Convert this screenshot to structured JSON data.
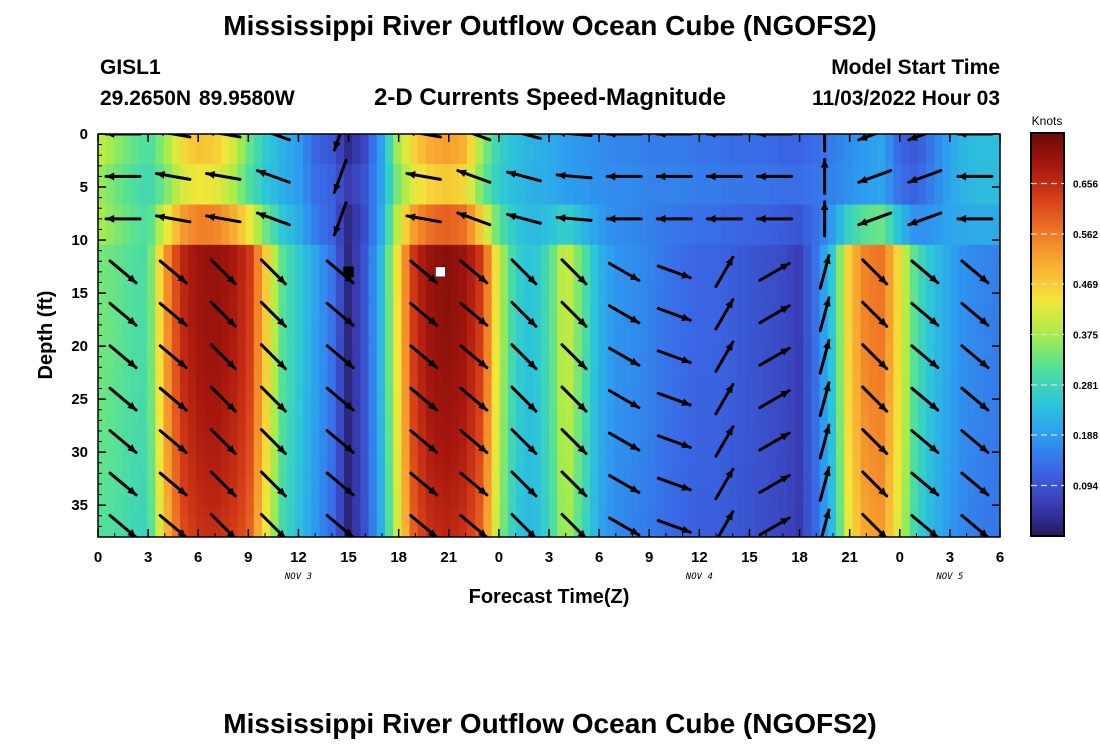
{
  "header": {
    "title": "Mississippi River Outflow Ocean Cube (NGOFS2)",
    "station_id": "GISL1",
    "station_location": "29.2650N  89.9580W",
    "subtitle": "2-D Currents Speed-Magnitude",
    "model_start_label": "Model Start Time",
    "model_start_value": "11/03/2022 Hour 03"
  },
  "footer": {
    "title": "Mississippi River Outflow Ocean Cube (NGOFS2)"
  },
  "chart_data": {
    "type": "heatmap",
    "xlabel": "Forecast Time(Z)",
    "ylabel": "Depth (ft)",
    "xlim": [
      0,
      54
    ],
    "ylim": [
      38,
      0
    ],
    "x_ticks": [
      0,
      3,
      6,
      9,
      12,
      15,
      18,
      21,
      24,
      27,
      30,
      33,
      36,
      39,
      42,
      45,
      48,
      51,
      54
    ],
    "x_tick_labels": [
      "0",
      "3",
      "6",
      "9",
      "12",
      "15",
      "18",
      "21",
      "0",
      "3",
      "6",
      "9",
      "12",
      "15",
      "18",
      "21",
      "0",
      "3",
      "6"
    ],
    "date_labels": [
      {
        "x": 12,
        "text": "NOV 3"
      },
      {
        "x": 36,
        "text": "NOV 4"
      },
      {
        "x": 51,
        "text": "NOV 5"
      }
    ],
    "y_ticks": [
      0,
      5,
      10,
      15,
      20,
      25,
      30,
      35
    ],
    "y_tick_labels": [
      "0",
      "5",
      "10",
      "15",
      "20",
      "25",
      "30",
      "35"
    ],
    "colorbar": {
      "label": "Knots",
      "range": [
        0.0,
        0.75
      ],
      "ticks": [
        0.094,
        0.188,
        0.281,
        0.375,
        0.469,
        0.562,
        0.656
      ],
      "tick_labels": [
        "0.094",
        "0.188",
        "0.281",
        "0.375",
        "0.469",
        "0.562",
        "0.656"
      ],
      "colors": [
        "#241a5c",
        "#3a3fb8",
        "#3a68e6",
        "#2d9cf0",
        "#2dc7d8",
        "#52e09a",
        "#a8ec4a",
        "#f2e63a",
        "#f9b233",
        "#f07a26",
        "#d8401a",
        "#a8170e",
        "#6b0a08"
      ]
    },
    "speed_profile": {
      "x": [
        0,
        1,
        2,
        3,
        4,
        5,
        6,
        7,
        8,
        9,
        10,
        11,
        12,
        13,
        14,
        15,
        16,
        17,
        18,
        19,
        20,
        21,
        22,
        23,
        24,
        25,
        26,
        27,
        28,
        29,
        30,
        31,
        32,
        33,
        34,
        35,
        36,
        37,
        38,
        39,
        40,
        41,
        42,
        43,
        44,
        45,
        46,
        47,
        48,
        49,
        50,
        51,
        52,
        53,
        54
      ],
      "surface_knots": [
        0.4,
        0.36,
        0.33,
        0.3,
        0.36,
        0.45,
        0.48,
        0.47,
        0.42,
        0.33,
        0.26,
        0.22,
        0.19,
        0.12,
        0.1,
        0.03,
        0.08,
        0.2,
        0.38,
        0.47,
        0.51,
        0.52,
        0.5,
        0.36,
        0.27,
        0.24,
        0.22,
        0.21,
        0.19,
        0.18,
        0.17,
        0.16,
        0.16,
        0.15,
        0.15,
        0.15,
        0.14,
        0.14,
        0.13,
        0.13,
        0.13,
        0.12,
        0.12,
        0.13,
        0.15,
        0.17,
        0.19,
        0.2,
        0.12,
        0.1,
        0.15,
        0.2,
        0.23,
        0.24,
        0.24
      ],
      "mid_knots": [
        0.34,
        0.33,
        0.31,
        0.3,
        0.52,
        0.66,
        0.7,
        0.71,
        0.69,
        0.65,
        0.48,
        0.32,
        0.26,
        0.2,
        0.14,
        0.02,
        0.1,
        0.24,
        0.46,
        0.66,
        0.71,
        0.72,
        0.7,
        0.63,
        0.4,
        0.27,
        0.24,
        0.3,
        0.42,
        0.32,
        0.22,
        0.18,
        0.17,
        0.16,
        0.14,
        0.13,
        0.12,
        0.12,
        0.11,
        0.1,
        0.09,
        0.08,
        0.06,
        0.14,
        0.26,
        0.48,
        0.56,
        0.57,
        0.44,
        0.3,
        0.24,
        0.2,
        0.17,
        0.16,
        0.15
      ],
      "layer_depth_ft": 10.5
    },
    "vectors": {
      "depths_ft": [
        0,
        4,
        8,
        13,
        17,
        21,
        25,
        29,
        33,
        37
      ],
      "x": [
        1.5,
        4.5,
        7.5,
        10.5,
        14.5,
        19.5,
        22.5,
        25.5,
        28.5,
        31.5,
        34.5,
        37.5,
        40.5,
        43.5,
        46.5,
        49.5,
        52.5
      ],
      "surface_angles_deg": [
        180,
        170,
        170,
        160,
        250,
        170,
        160,
        165,
        175,
        180,
        180,
        180,
        180,
        90,
        200,
        200,
        180
      ],
      "deep_angles_deg": [
        -40,
        -40,
        -45,
        -45,
        -40,
        -40,
        -40,
        -45,
        -45,
        -30,
        -20,
        60,
        30,
        75,
        -45,
        -40,
        -40
      ]
    },
    "markers": [
      {
        "x": 15,
        "depth_ft": 13,
        "color": "#000000"
      },
      {
        "x": 20.5,
        "depth_ft": 13,
        "color": "#ffffff"
      }
    ]
  }
}
